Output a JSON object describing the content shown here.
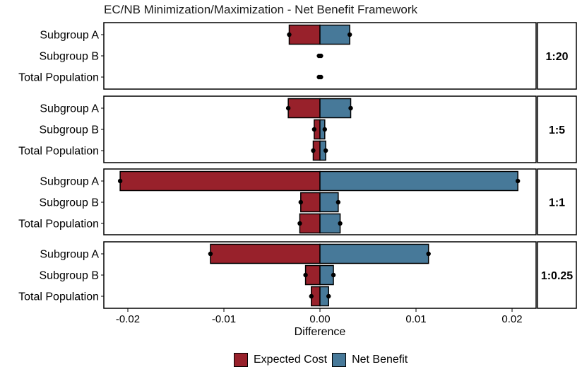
{
  "chart_data": {
    "type": "bar",
    "title": "EC/NB Minimization/Maximization - Net Benefit Framework",
    "xlabel": "Difference",
    "ylabel": "",
    "xlim": [
      -0.0225,
      0.0225
    ],
    "x_ticks": [
      -0.02,
      -0.01,
      0.0,
      0.01,
      0.02
    ],
    "x_tick_labels": [
      "-0.02",
      "-0.01",
      "0.00",
      "0.01",
      "0.02"
    ],
    "categories": [
      "Subgroup A",
      "Subgroup B",
      "Total Population"
    ],
    "legend": [
      "Expected Cost",
      "Net Benefit"
    ],
    "legend_position": "bottom",
    "colors": {
      "Expected Cost": "#98212B",
      "Net Benefit": "#477999"
    },
    "grid": false,
    "facets": [
      {
        "label": "1:20",
        "expected_cost": [
          -0.0032,
          -0.0001,
          -0.0001
        ],
        "net_benefit": [
          0.0031,
          0.0001,
          0.0001
        ]
      },
      {
        "label": "1:5",
        "expected_cost": [
          -0.0033,
          -0.0006,
          -0.0007
        ],
        "net_benefit": [
          0.0032,
          0.0005,
          0.0006
        ]
      },
      {
        "label": "1:1",
        "expected_cost": [
          -0.0208,
          -0.002,
          -0.0021
        ],
        "net_benefit": [
          0.0206,
          0.0019,
          0.0021
        ]
      },
      {
        "label": "1:0.25",
        "expected_cost": [
          -0.0114,
          -0.0015,
          -0.0009
        ],
        "net_benefit": [
          0.0113,
          0.0014,
          0.0009
        ]
      }
    ]
  }
}
